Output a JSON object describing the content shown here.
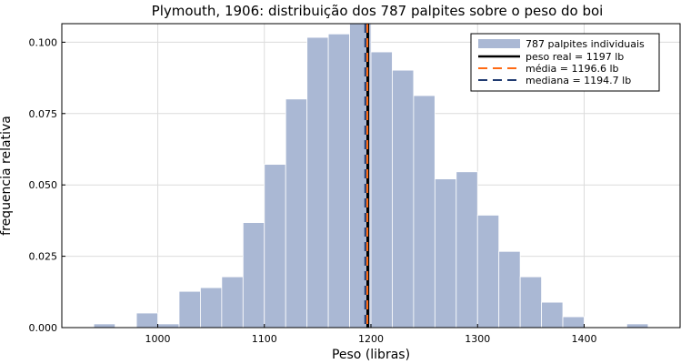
{
  "chart_data": {
    "type": "bar",
    "title": "Plymouth, 1906: distribuição dos 787 palpites sobre o peso do boi",
    "xlabel": "Peso (libras)",
    "ylabel": "frequencia relativa",
    "xlim": [
      910,
      1490
    ],
    "ylim": [
      0,
      0.1065
    ],
    "grid": true,
    "legend_position": "top-right",
    "bin_width": 20,
    "bins_start": [
      940,
      960,
      980,
      1000,
      1020,
      1040,
      1060,
      1080,
      1100,
      1120,
      1140,
      1160,
      1180,
      1200,
      1220,
      1240,
      1260,
      1280,
      1300,
      1320,
      1340,
      1360,
      1380,
      1400,
      1420,
      1440
    ],
    "values": [
      0.0013,
      0,
      0.0051,
      0.0013,
      0.0127,
      0.014,
      0.0178,
      0.0368,
      0.0572,
      0.0801,
      0.1017,
      0.1029,
      0.1068,
      0.0966,
      0.0902,
      0.0813,
      0.0521,
      0.0546,
      0.0394,
      0.0267,
      0.0178,
      0.0089,
      0.0038,
      0,
      0,
      0.0013
    ],
    "x_ticks": [
      1000,
      1100,
      1200,
      1300,
      1400
    ],
    "y_ticks": [
      0.0,
      0.025,
      0.05,
      0.075,
      0.1
    ],
    "y_tick_labels": [
      "0.000",
      "0.025",
      "0.050",
      "0.075",
      "0.100"
    ],
    "vlines": [
      {
        "label": "peso real = 1197 lb",
        "x": 1197,
        "color": "#000000",
        "dash": "solid"
      },
      {
        "label": "média = 1196.6 lb",
        "x": 1196.6,
        "color": "#ff6a13",
        "dash": "dashed"
      },
      {
        "label": "mediana = 1194.7 lb",
        "x": 1194.7,
        "color": "#1f3a70",
        "dash": "dashed"
      }
    ],
    "histogram_label": "787 palpites individuais",
    "bar_color": "#aab8d4"
  }
}
